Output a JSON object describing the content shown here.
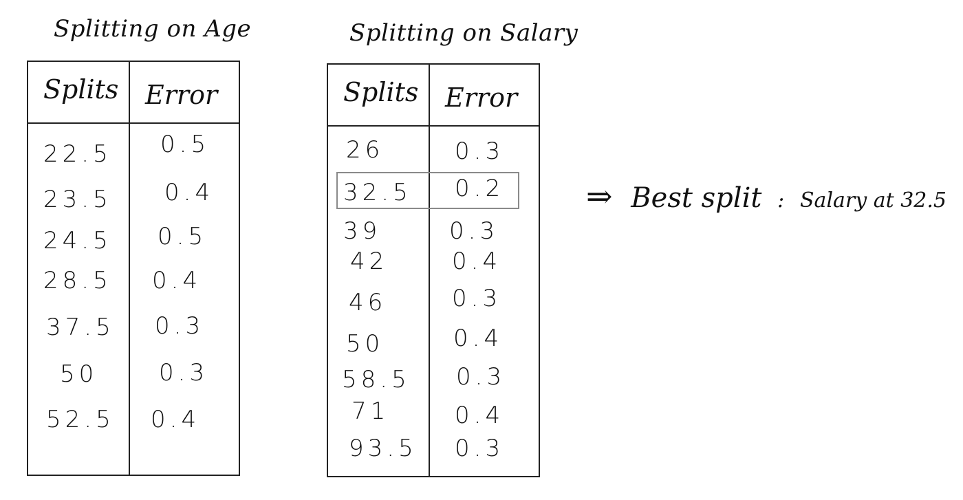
{
  "age_table": {
    "title": "Splitting on Age",
    "headers": {
      "splits": "Splits",
      "error": "Error"
    },
    "rows": [
      {
        "split": "22.5",
        "error": "0.5"
      },
      {
        "split": "23.5",
        "error": "0.4"
      },
      {
        "split": "24.5",
        "error": "0.5"
      },
      {
        "split": "28.5",
        "error": "0.4"
      },
      {
        "split": "37.5",
        "error": "0.3"
      },
      {
        "split": "50",
        "error": "0.3"
      },
      {
        "split": "52.5",
        "error": "0.4"
      }
    ]
  },
  "salary_table": {
    "title": "Splitting on Salary",
    "headers": {
      "splits": "Splits",
      "error": "Error"
    },
    "rows": [
      {
        "split": "26",
        "error": "0.3"
      },
      {
        "split": "32.5",
        "error": "0.2"
      },
      {
        "split": "39",
        "error": "0.3"
      },
      {
        "split": "42",
        "error": "0.4"
      },
      {
        "split": "46",
        "error": "0.3"
      },
      {
        "split": "50",
        "error": "0.4"
      },
      {
        "split": "58.5",
        "error": "0.3"
      },
      {
        "split": "71",
        "error": "0.4"
      },
      {
        "split": "93.5",
        "error": "0.3"
      }
    ],
    "highlighted_row": 1
  },
  "conclusion": {
    "arrow": "⇒",
    "label": "Best split",
    "separator": ":",
    "text": "Salary at 32.5"
  }
}
